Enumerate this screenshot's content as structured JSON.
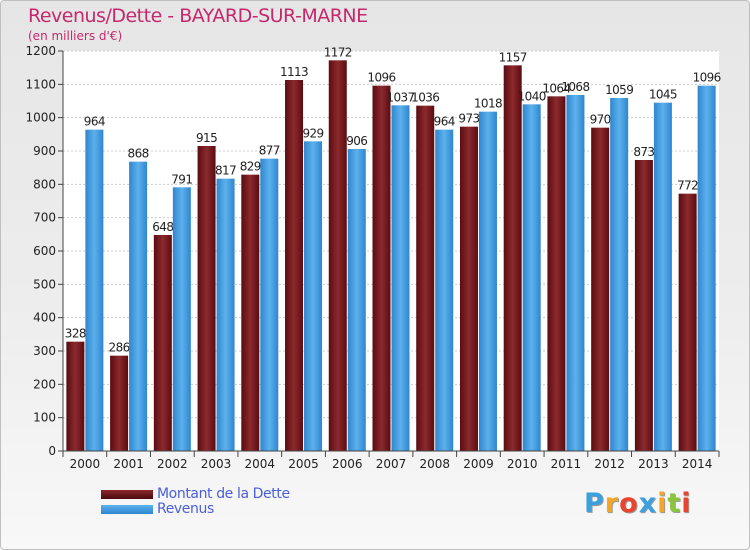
{
  "chart_data": {
    "type": "bar",
    "title": "Revenus/Dette - BAYARD-SUR-MARNE",
    "subtitle": "(en milliers d'€)",
    "categories": [
      "2000",
      "2001",
      "2002",
      "2003",
      "2004",
      "2005",
      "2006",
      "2007",
      "2008",
      "2009",
      "2010",
      "2011",
      "2012",
      "2013",
      "2014"
    ],
    "series": [
      {
        "name": "Montant de la Dette",
        "color": "#7a1b1f",
        "values": [
          328,
          286,
          648,
          915,
          829,
          1113,
          1172,
          1096,
          1036,
          973,
          1157,
          1064,
          970,
          873,
          772
        ]
      },
      {
        "name": "Revenus",
        "color": "#4a9fe0",
        "values": [
          964,
          868,
          791,
          817,
          877,
          929,
          906,
          1037,
          964,
          1018,
          1040,
          1068,
          1059,
          1045,
          1096
        ]
      }
    ],
    "ylim": [
      0,
      1200
    ],
    "yticks": [
      0,
      100,
      200,
      300,
      400,
      500,
      600,
      700,
      800,
      900,
      1000,
      1100,
      1200
    ],
    "grid": true,
    "legend_position": "bottom-left"
  },
  "logo": {
    "text": "Proxiti",
    "letters": [
      "P",
      "r",
      "o",
      "x",
      "i",
      "t",
      "i"
    ],
    "colors": [
      "#3ba0dc",
      "#f5a623",
      "#e9442d",
      "#3ba0dc",
      "#f5a623",
      "#8bc53f",
      "#e9442d"
    ]
  }
}
